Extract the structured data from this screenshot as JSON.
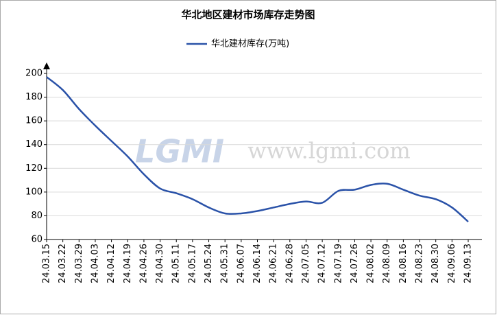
{
  "chart_data": {
    "type": "line",
    "title": "华北地区建材市场库存走势图",
    "categories": [
      "24.03.15",
      "24.03.22",
      "24.03.29",
      "24.04.03",
      "24.04.12",
      "24.04.19",
      "24.04.26",
      "24.04.30",
      "24.05.11",
      "24.05.17",
      "24.05.24",
      "24.05.31",
      "24.06.07",
      "24.06.14",
      "24.06.21",
      "24.06.28",
      "24.07.05",
      "24.07.12",
      "24.07.19",
      "24.07.26",
      "24.08.02",
      "24.08.09",
      "24.08.16",
      "24.08.23",
      "24.08.30",
      "24.09.06",
      "24.09.13"
    ],
    "series": [
      {
        "name": "华北建材库存(万吨)",
        "color": "#2a52a8",
        "values": [
          197,
          186,
          170,
          156,
          143,
          130,
          115,
          103,
          99,
          94,
          87,
          82,
          82,
          84,
          87,
          90,
          92,
          91,
          101,
          102,
          106,
          107,
          102,
          97,
          94,
          87,
          75
        ]
      }
    ],
    "ylim": [
      60,
      200
    ],
    "yticks": [
      60,
      80,
      100,
      120,
      140,
      160,
      180,
      200
    ],
    "grid": true,
    "watermark": {
      "logo": "LGMI",
      "url": "www.lgmi.com"
    }
  }
}
